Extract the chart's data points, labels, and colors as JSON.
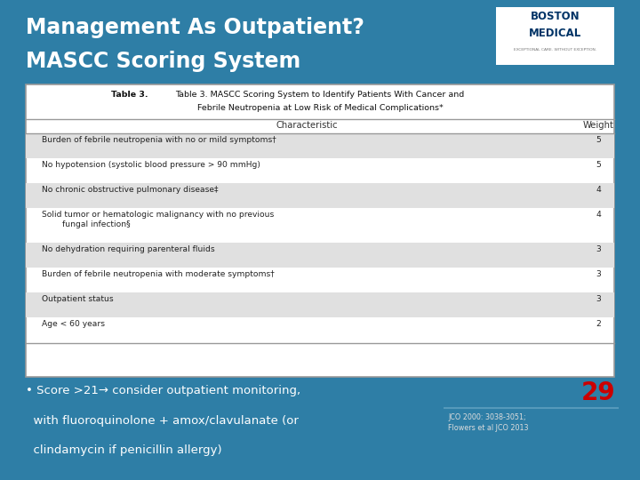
{
  "title_line1": "Management As Outpatient?",
  "title_line2": "MASCC Scoring System",
  "title_color": "#FFFFFF",
  "bg_color": "#2E7EA6",
  "col_header_char": "Characteristic",
  "col_header_weight": "Weight",
  "rows": [
    {
      "char": "Burden of febrile neutropenia with no or mild symptoms†",
      "weight": "5",
      "shaded": true
    },
    {
      "char": "No hypotension (systolic blood pressure > 90 mmHg)",
      "weight": "5",
      "shaded": false
    },
    {
      "char": "No chronic obstructive pulmonary disease‡",
      "weight": "4",
      "shaded": true
    },
    {
      "char": "Solid tumor or hematologic malignancy with no previous\n        fungal infection§",
      "weight": "4",
      "shaded": false
    },
    {
      "char": "No dehydration requiring parenteral fluids",
      "weight": "3",
      "shaded": true
    },
    {
      "char": "Burden of febrile neutropenia with moderate symptoms†",
      "weight": "3",
      "shaded": false
    },
    {
      "char": "Outpatient status",
      "weight": "3",
      "shaded": true
    },
    {
      "char": "Age < 60 years",
      "weight": "2",
      "shaded": false
    }
  ],
  "bullet_text_line1": "• Score >21→ consider outpatient monitoring,",
  "bullet_text_line2": "  with fluoroquinolone + amox/clavulanate (or",
  "bullet_text_line3": "  clindamycin if penicillin allergy)",
  "score_text": "29",
  "score_color": "#CC0000",
  "ref_text": "JCO 2000: 3038-3051;\nFlowers et al JCO 2013",
  "table_bg": "#FFFFFF",
  "shaded_color": "#E0E0E0",
  "border_color": "#999999",
  "text_color": "#222222"
}
